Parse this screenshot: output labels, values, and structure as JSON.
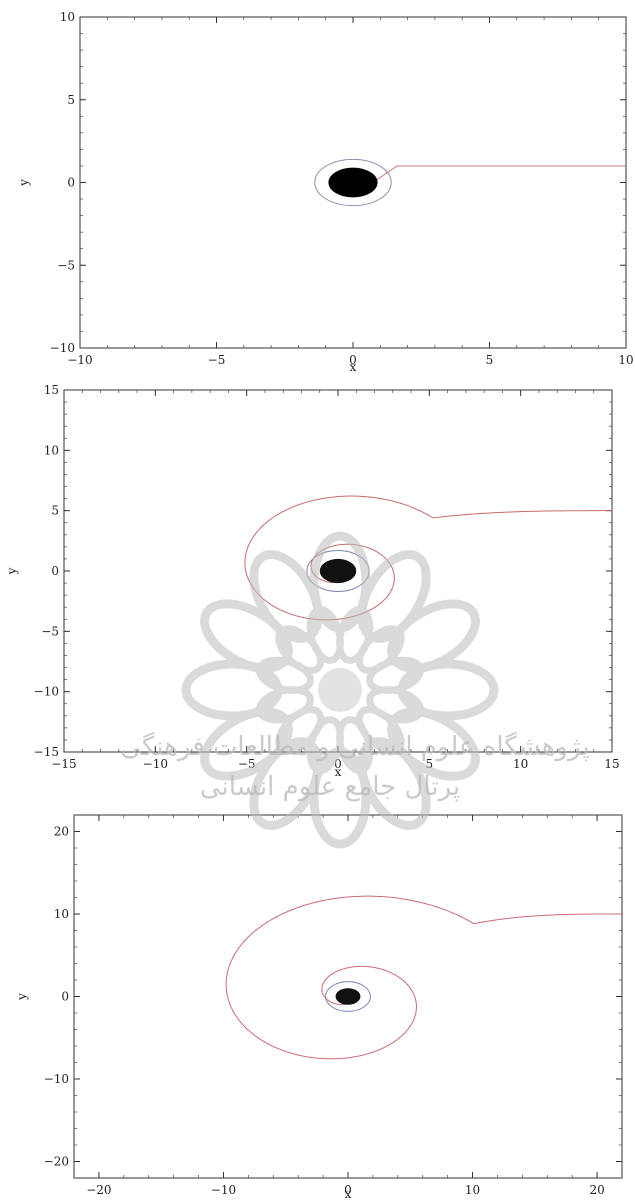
{
  "chart_data": [
    {
      "type": "line",
      "xlabel": "x",
      "ylabel": "y",
      "xlim": [
        -10,
        10
      ],
      "ylim": [
        -10,
        10
      ],
      "xticks": [
        -10,
        -5,
        0,
        5,
        10
      ],
      "yticks": [
        -10,
        -5,
        0,
        5,
        10
      ],
      "xtick_labels": [
        "−10",
        "−5",
        "0",
        "5",
        "10"
      ],
      "ytick_labels": [
        "−10",
        "−5",
        "0",
        "5",
        "10"
      ],
      "black_hole_radius": 0.9,
      "circle_radius": 1.4,
      "trajectory": {
        "impact_parameter": 1.0,
        "approach_from": 10,
        "capture_x": 0.9
      },
      "colors": {
        "circle": "#8a8fb5",
        "trajectory": "#c77b7b",
        "hole": "#000000"
      },
      "grid": false
    },
    {
      "type": "line",
      "xlabel": "x",
      "ylabel": "y",
      "xlim": [
        -15,
        15
      ],
      "ylim": [
        -15,
        15
      ],
      "xticks": [
        -15,
        -10,
        -5,
        0,
        5,
        10,
        15
      ],
      "yticks": [
        -15,
        -10,
        -5,
        0,
        5,
        10,
        15
      ],
      "xtick_labels": [
        "−15",
        "−10",
        "−5",
        "0",
        "5",
        "10",
        "15"
      ],
      "ytick_labels": [
        "−15",
        "−10",
        "−5",
        "0",
        "5",
        "10",
        "15"
      ],
      "black_hole_radius": 1.0,
      "circle_radius": 1.7,
      "trajectory": {
        "impact_parameter": 5.0,
        "approach_from": 15,
        "spiral_start_x": 5.2,
        "spiral_radius_max": 5.2,
        "spiral_radius_min": 1.0
      },
      "colors": {
        "circle": "#7d86b0",
        "trajectory": "#c86a6a",
        "hole": "#111111"
      },
      "grid": false
    },
    {
      "type": "line",
      "xlabel": "x",
      "ylabel": "y",
      "xlim": [
        -22,
        22
      ],
      "ylim": [
        -22,
        22
      ],
      "xticks": [
        -20,
        -10,
        0,
        10,
        20
      ],
      "yticks": [
        -20,
        -10,
        0,
        10,
        20
      ],
      "xtick_labels": [
        "−20",
        "−10",
        "0",
        "10",
        "20"
      ],
      "ytick_labels": [
        "−20",
        "−10",
        "0",
        "10",
        "20"
      ],
      "black_hole_radius": 1.0,
      "circle_radius": 1.8,
      "trajectory": {
        "impact_parameter": 10.0,
        "approach_from": 22,
        "spiral_start_x": 10.0,
        "spiral_radius_max": 10.0,
        "spiral_radius_min": 1.0
      },
      "colors": {
        "circle": "#7a80b8",
        "trajectory": "#c96b73",
        "hole": "#111111"
      },
      "grid": false
    }
  ],
  "watermark": {
    "line1": "پژوهشگاه علوم انسانی و مطالعات فرهنگی",
    "line2": "پرتال جامع علوم انسانی",
    "color": "#bcbcbc"
  }
}
